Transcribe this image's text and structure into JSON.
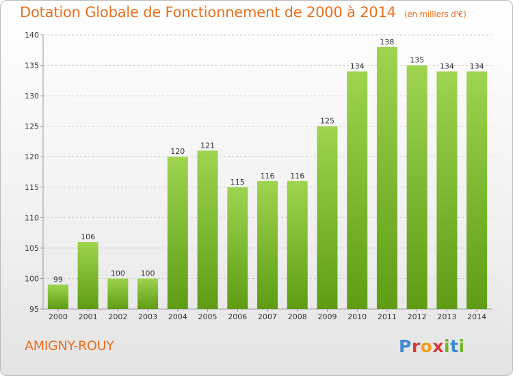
{
  "title": "Dotation Globale de Fonctionnement de 2000 à 2014",
  "unit": "(en milliers d'€)",
  "place": "AMIGNY-ROUY",
  "logo": [
    "P",
    "r",
    "o",
    "x",
    "i",
    "t",
    "i"
  ],
  "colors": {
    "title": "#e86f1c",
    "bar_top": "#9ed450",
    "bar_bottom": "#5f9c14",
    "grid": "#cccccc"
  },
  "chart_data": {
    "type": "bar",
    "categories": [
      "2000",
      "2001",
      "2002",
      "2003",
      "2004",
      "2005",
      "2006",
      "2007",
      "2008",
      "2009",
      "2010",
      "2011",
      "2012",
      "2013",
      "2014"
    ],
    "values": [
      99,
      106,
      100,
      100,
      120,
      121,
      115,
      116,
      116,
      125,
      134,
      138,
      135,
      134,
      134
    ],
    "ylim": [
      95,
      140
    ],
    "yticks": [
      95,
      100,
      105,
      110,
      115,
      120,
      125,
      130,
      135,
      140
    ],
    "grid": true,
    "legend": "none"
  }
}
